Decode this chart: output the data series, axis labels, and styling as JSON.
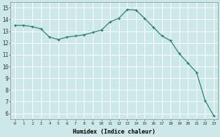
{
  "x": [
    0,
    1,
    2,
    3,
    4,
    5,
    6,
    7,
    8,
    9,
    10,
    11,
    12,
    13,
    14,
    15,
    16,
    17,
    18,
    19,
    20,
    21,
    22,
    23
  ],
  "y": [
    13.5,
    13.5,
    13.4,
    13.2,
    12.5,
    12.3,
    12.5,
    12.6,
    12.7,
    12.9,
    13.1,
    13.8,
    14.1,
    14.85,
    14.8,
    14.1,
    13.35,
    12.6,
    12.2,
    11.1,
    10.3,
    9.5,
    7.1,
    5.8
  ],
  "xlim": [
    -0.5,
    23.5
  ],
  "ylim": [
    5.5,
    15.5
  ],
  "xticks": [
    0,
    1,
    2,
    3,
    4,
    5,
    6,
    7,
    8,
    9,
    10,
    11,
    12,
    13,
    14,
    15,
    16,
    17,
    18,
    19,
    20,
    21,
    22,
    23
  ],
  "yticks": [
    6,
    7,
    8,
    9,
    10,
    11,
    12,
    13,
    14,
    15
  ],
  "xlabel": "Humidex (Indice chaleur)",
  "line_color": "#2e7d6e",
  "marker": "+",
  "bg_color": "#cce8e8",
  "grid_color": "#ffffff",
  "grid_minor_color": "#e8f4f4"
}
